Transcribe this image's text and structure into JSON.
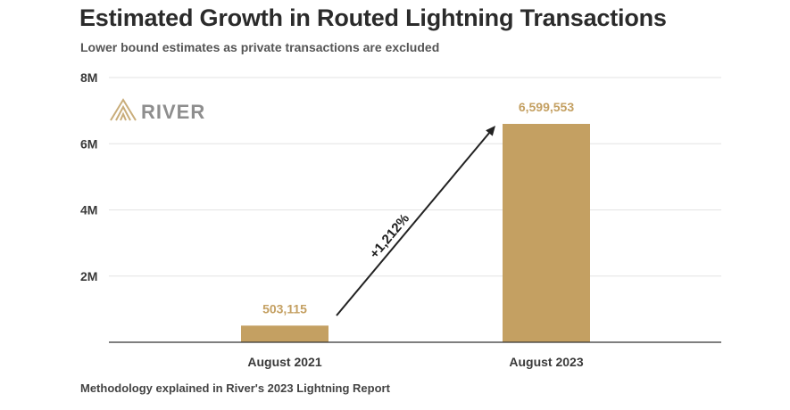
{
  "colors": {
    "bar": "#c4a062",
    "label": "#c4a062",
    "grid": "#e3e3e3",
    "axis": "#333333",
    "arrow": "#222222",
    "brand_text": "#8e8e8e"
  },
  "logo": {
    "text": "RIVER",
    "icon": "river-logo-icon"
  },
  "footnote": "Methodology explained in River's 2023 Lightning Report",
  "chart_data": {
    "type": "bar",
    "title": "Estimated Growth in Routed Lightning Transactions",
    "subtitle": "Lower bound estimates as private transactions are excluded",
    "categories": [
      "August 2021",
      "August 2023"
    ],
    "values": [
      503115,
      6599553
    ],
    "data_labels": [
      "503,115",
      "6,599,553"
    ],
    "ylim": [
      0,
      8000000
    ],
    "yticks": [
      2000000,
      4000000,
      6000000,
      8000000
    ],
    "ytick_labels": [
      "2M",
      "4M",
      "6M",
      "8M"
    ],
    "xlabel": "",
    "ylabel": "",
    "grid": true,
    "annotation": {
      "text": "+1,212%",
      "from_category": "August 2021",
      "to_category": "August 2023"
    }
  }
}
